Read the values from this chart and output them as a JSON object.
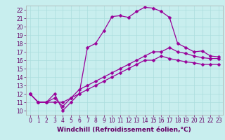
{
  "title": "",
  "xlabel": "Windchill (Refroidissement éolien,°C)",
  "ylabel": "",
  "bg_color": "#c8eeee",
  "grid_color": "#aadddd",
  "line_color": "#990099",
  "xlim": [
    -0.5,
    23.5
  ],
  "ylim": [
    9.5,
    22.5
  ],
  "xticks": [
    0,
    1,
    2,
    3,
    4,
    5,
    6,
    7,
    8,
    9,
    10,
    11,
    12,
    13,
    14,
    15,
    16,
    17,
    18,
    19,
    20,
    21,
    22,
    23
  ],
  "yticks": [
    10,
    11,
    12,
    13,
    14,
    15,
    16,
    17,
    18,
    19,
    20,
    21,
    22
  ],
  "line1_x": [
    0,
    1,
    2,
    3,
    4,
    5,
    6,
    7,
    8,
    9,
    10,
    11,
    12,
    13,
    14,
    15,
    16,
    17,
    18,
    19,
    20,
    21,
    22,
    23
  ],
  "line1_y": [
    12,
    11,
    11,
    12,
    10,
    11,
    12,
    17.5,
    18,
    19.5,
    21.2,
    21.3,
    21.1,
    21.8,
    22.3,
    22.2,
    21.8,
    21.1,
    18,
    17.5,
    17,
    17.1,
    16.5,
    16.4
  ],
  "line2_x": [
    0,
    1,
    2,
    3,
    4,
    5,
    6,
    7,
    8,
    9,
    10,
    11,
    12,
    13,
    14,
    15,
    16,
    17,
    18,
    19,
    20,
    21,
    22,
    23
  ],
  "line2_y": [
    12,
    11,
    11,
    11.5,
    10.5,
    11.5,
    12.5,
    13,
    13.5,
    14,
    14.5,
    15,
    15.5,
    16,
    16.5,
    17,
    17,
    17.5,
    17,
    16.8,
    16.5,
    16.3,
    16.2,
    16.2
  ],
  "line3_x": [
    0,
    1,
    2,
    3,
    4,
    5,
    6,
    7,
    8,
    9,
    10,
    11,
    12,
    13,
    14,
    15,
    16,
    17,
    18,
    19,
    20,
    21,
    22,
    23
  ],
  "line3_y": [
    12,
    11,
    11,
    11,
    11,
    11.5,
    12,
    12.5,
    13,
    13.5,
    14,
    14.5,
    15,
    15.5,
    16,
    16,
    16.5,
    16.2,
    16,
    15.8,
    15.7,
    15.5,
    15.5,
    15.5
  ],
  "marker": "D",
  "markersize": 2.5,
  "linewidth": 0.9,
  "xlabel_fontsize": 6.5,
  "tick_fontsize": 5.5,
  "xlabel_color": "#660066",
  "tick_color": "#660066",
  "spine_color": "#aaaaaa"
}
